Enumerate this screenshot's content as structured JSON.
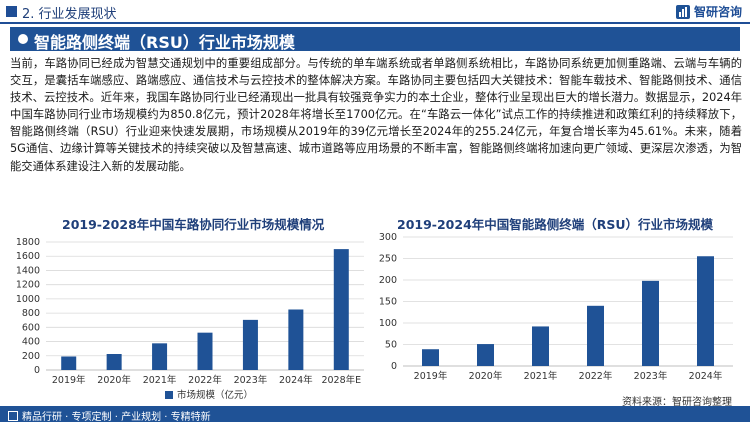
{
  "header": {
    "section": "2. 行业发展现状",
    "logo_text": "智研咨询",
    "title": "智能路侧终端（RSU）行业市场规模"
  },
  "paragraph": "当前，车路协同已经成为智慧交通规划中的重要组成部分。与传统的单车端系统或者单路侧系统相比，车路协同系统更加侧重路端、云端与车辆的交互，是囊括车端感应、路端感应、通信技术与云控技术的整体解决方案。车路协同主要包括四大关键技术：智能车载技术、智能路侧技术、通信技术、云控技术。近年来，我国车路协同行业已经涌现出一批具有较强竞争实力的本土企业，整体行业呈现出巨大的增长潜力。数据显示，2024年中国车路协同行业市场规模约为850.8亿元，预计2028年将增长至1700亿元。在“车路云一体化”试点工作的持续推进和政策红利的持续释放下，智能路侧终端（RSU）行业迎来快速发展期，市场规模从2019年的39亿元增长至2024年的255.24亿元，年复合增长率为45.61%。未来，随着5G通信、边缘计算等关键技术的持续突破以及智慧高速、城市道路等应用场景的不断丰富，智能路侧终端将加速向更广领域、更深层次渗透，为智能交通体系建设注入新的发展动能。",
  "colors": {
    "brand": "#1f5296",
    "bar": "#1f5296",
    "grid": "#d9d9d9"
  },
  "chart_data": [
    {
      "type": "bar",
      "title": "2019-2028年中国车路协同行业市场规模情况",
      "categories": [
        "2019年",
        "2020年",
        "2021年",
        "2022年",
        "2023年",
        "2024年",
        "2028年E"
      ],
      "series": [
        {
          "name": "市场规模（亿元）",
          "values": [
            190,
            225,
            375,
            525,
            705,
            850.8,
            1700
          ]
        }
      ],
      "yticks": [
        0,
        200,
        400,
        600,
        800,
        1000,
        1200,
        1400,
        1600,
        1800
      ],
      "ylim": [
        0,
        1800
      ],
      "grid": true,
      "legend": "bottom"
    },
    {
      "type": "bar",
      "title": "2019-2024年中国智能路侧终端（RSU）行业市场规模",
      "categories": [
        "2019年",
        "2020年",
        "2021年",
        "2022年",
        "2023年",
        "2024年"
      ],
      "series": [
        {
          "name": "",
          "values": [
            39,
            51,
            92,
            140,
            198,
            255.24
          ]
        }
      ],
      "yticks": [
        0,
        50,
        100,
        150,
        200,
        250,
        300
      ],
      "ylim": [
        0,
        300
      ],
      "grid": true
    }
  ],
  "source": "资料来源：智研咨询整理",
  "footer": {
    "text": "精品行研 · 专项定制 · 产业规划 · 专精特新"
  }
}
